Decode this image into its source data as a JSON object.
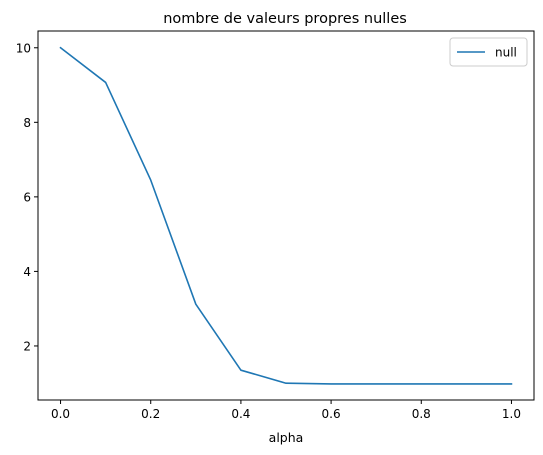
{
  "chart_data": {
    "type": "line",
    "title": "nombre de valeurs propres nulles",
    "xlabel": "alpha",
    "ylabel": "",
    "xlim": [
      -0.05,
      1.05
    ],
    "ylim": [
      0.55,
      10.45
    ],
    "x_ticks": [
      "0.0",
      "0.2",
      "0.4",
      "0.6",
      "0.8",
      "1.0"
    ],
    "y_ticks": [
      "2",
      "4",
      "6",
      "8",
      "10"
    ],
    "grid": false,
    "legend": {
      "placement": "top-right"
    },
    "series": [
      {
        "name": "null",
        "color": "#1f77b4",
        "x": [
          0.0,
          0.1,
          0.2,
          0.3,
          0.4,
          0.5,
          0.6,
          0.7,
          0.8,
          0.9,
          1.0
        ],
        "y": [
          10.0,
          9.07,
          6.45,
          3.12,
          1.35,
          1.0,
          0.98,
          0.98,
          0.98,
          0.98,
          0.98
        ]
      }
    ]
  }
}
